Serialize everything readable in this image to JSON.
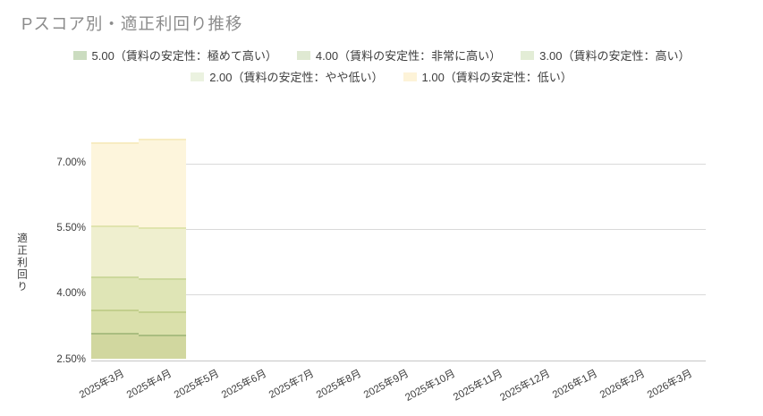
{
  "title": "Pスコア別・適正利回り推移",
  "legend": {
    "items": [
      {
        "label": "5.00（賃料の安定性：極めて高い）",
        "color": "#cbdcc0"
      },
      {
        "label": "4.00（賃料の安定性：非常に高い）",
        "color": "#dfe9d2"
      },
      {
        "label": "3.00（賃料の安定性：高い）",
        "color": "#e3edd6"
      },
      {
        "label": "2.00（賃料の安定性：やや低い）",
        "color": "#ebf2e0"
      },
      {
        "label": "1.00（賃料の安定性：低い）",
        "color": "#fdf3d8"
      }
    ]
  },
  "chart_data": {
    "type": "area",
    "title": "Pスコア別・適正利回り推移",
    "ylabel": "適正利回り",
    "ylim": [
      2.5,
      7.75
    ],
    "grid": true,
    "legend_position": "top",
    "yticks": [
      {
        "value": 2.5,
        "label": "2.50%"
      },
      {
        "value": 4.0,
        "label": "4.00%"
      },
      {
        "value": 5.5,
        "label": "5.50%"
      },
      {
        "value": 7.0,
        "label": "7.00%"
      }
    ],
    "categories": [
      "2025年3月",
      "2025年4月",
      "2025年5月",
      "2025年6月",
      "2025年7月",
      "2025年8月",
      "2025年9月",
      "2025年10月",
      "2025年11月",
      "2025年12月",
      "2026年1月",
      "2026年2月",
      "2026年3月"
    ],
    "series": [
      {
        "name": "5.00（賃料の安定性：極めて高い）",
        "fill": "#d1d79f",
        "edge": "#a9bd80",
        "values": [
          3.12,
          3.08,
          null,
          null,
          null,
          null,
          null,
          null,
          null,
          null,
          null,
          null,
          null
        ]
      },
      {
        "name": "4.00（賃料の安定性：非常に高い）",
        "fill": "#dae0ab",
        "edge": "#c2cf8d",
        "values": [
          3.67,
          3.62,
          null,
          null,
          null,
          null,
          null,
          null,
          null,
          null,
          null,
          null,
          null
        ]
      },
      {
        "name": "3.00（賃料の安定性：高い）",
        "fill": "#dfe5b6",
        "edge": "#ccd89c",
        "values": [
          4.43,
          4.39,
          null,
          null,
          null,
          null,
          null,
          null,
          null,
          null,
          null,
          null,
          null
        ]
      },
      {
        "name": "2.00（賃料の安定性：やや低い）",
        "fill": "#efefcf",
        "edge": "#e0e4ae",
        "values": [
          5.6,
          5.55,
          null,
          null,
          null,
          null,
          null,
          null,
          null,
          null,
          null,
          null,
          null
        ]
      },
      {
        "name": "1.00（賃料の安定性：低い）",
        "fill": "#fdf5dc",
        "edge": "#f7ecc2",
        "values": [
          7.5,
          7.58,
          null,
          null,
          null,
          null,
          null,
          null,
          null,
          null,
          null,
          null,
          null
        ]
      }
    ]
  },
  "colors": {
    "title_text": "#8c8c8c",
    "tick_text": "#3d3d3d",
    "gridline": "#d9d9d9",
    "axis_line": "#c6c6c6",
    "background": "#ffffff"
  }
}
